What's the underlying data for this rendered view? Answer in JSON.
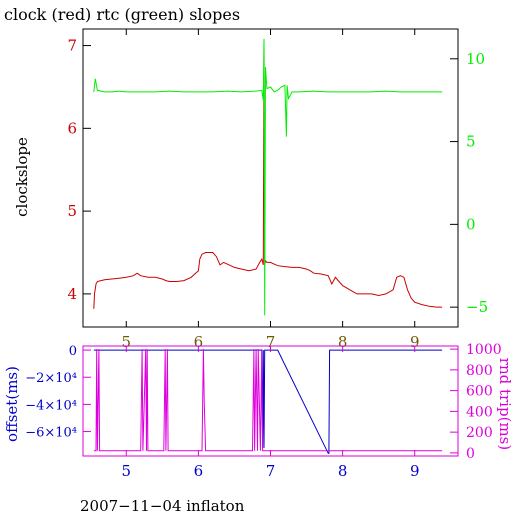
{
  "title": "clock (red) rtc (green) slopes",
  "footer": "2007−11−04 inflaton",
  "colors": {
    "red": "#cc0000",
    "green": "#00ee00",
    "blue": "#0000cc",
    "magenta": "#dd00dd",
    "olive": "#6b5a00",
    "axis": "#000000"
  },
  "chart_data": [
    {
      "type": "line",
      "title": "clock (red) rtc (green) slopes",
      "ylabel": "clockslope",
      "x_ticks": [
        "5",
        "6",
        "7",
        "8",
        "9"
      ],
      "xlim": [
        4.4,
        9.6
      ],
      "ylim": [
        3.6,
        7.2
      ],
      "y_ticks": [
        "4",
        "5",
        "6",
        "7"
      ],
      "y2lim": [
        -6.2,
        11.8
      ],
      "y2_ticks": [
        "−5",
        "0",
        "5",
        "10"
      ],
      "grid": false,
      "series": [
        {
          "axis": "left",
          "color": "red",
          "x": [
            4.55,
            4.56,
            4.58,
            4.6,
            4.65,
            4.7,
            4.8,
            4.9,
            5.0,
            5.1,
            5.15,
            5.2,
            5.3,
            5.4,
            5.5,
            5.55,
            5.6,
            5.7,
            5.8,
            5.9,
            6.0,
            6.02,
            6.05,
            6.1,
            6.2,
            6.25,
            6.3,
            6.35,
            6.45,
            6.5,
            6.6,
            6.7,
            6.8,
            6.85,
            6.88,
            6.9,
            6.91,
            6.92,
            6.93,
            6.95,
            7.0,
            7.1,
            7.2,
            7.3,
            7.4,
            7.5,
            7.55,
            7.6,
            7.7,
            7.8,
            7.85,
            7.9,
            7.95,
            8.0,
            8.1,
            8.2,
            8.3,
            8.4,
            8.5,
            8.6,
            8.7,
            8.75,
            8.8,
            8.85,
            8.9,
            8.95,
            9.0,
            9.1,
            9.2,
            9.3,
            9.38
          ],
          "y": [
            3.82,
            4.0,
            4.12,
            4.15,
            4.16,
            4.17,
            4.18,
            4.19,
            4.2,
            4.22,
            4.25,
            4.22,
            4.2,
            4.2,
            4.18,
            4.16,
            4.15,
            4.15,
            4.16,
            4.2,
            4.28,
            4.42,
            4.48,
            4.5,
            4.5,
            4.45,
            4.35,
            4.38,
            4.34,
            4.32,
            4.3,
            4.28,
            4.3,
            4.38,
            4.42,
            4.35,
            7.05,
            4.35,
            4.4,
            4.38,
            4.38,
            4.34,
            4.33,
            4.32,
            4.32,
            4.3,
            4.28,
            4.25,
            4.24,
            4.22,
            4.12,
            4.2,
            4.15,
            4.1,
            4.05,
            4.0,
            4.0,
            4.0,
            3.98,
            4.0,
            4.05,
            4.2,
            4.22,
            4.2,
            4.05,
            3.95,
            3.9,
            3.87,
            3.85,
            3.84,
            3.84
          ]
        },
        {
          "axis": "right",
          "color": "green",
          "x": [
            4.55,
            4.57,
            4.6,
            4.7,
            4.8,
            4.9,
            5.0,
            5.2,
            5.4,
            5.6,
            5.8,
            6.0,
            6.2,
            6.4,
            6.6,
            6.8,
            6.88,
            6.9,
            6.91,
            6.92,
            6.93,
            6.95,
            7.0,
            7.05,
            7.1,
            7.15,
            7.2,
            7.22,
            7.23,
            7.25,
            7.3,
            7.4,
            7.6,
            7.8,
            8.0,
            8.2,
            8.4,
            8.6,
            8.8,
            9.0,
            9.2,
            9.38
          ],
          "y": [
            8.0,
            8.8,
            8.1,
            8.0,
            8.0,
            8.05,
            8.0,
            8.0,
            8.0,
            8.05,
            8.0,
            8.0,
            8.0,
            8.05,
            8.0,
            8.05,
            8.1,
            7.5,
            11.2,
            -5.5,
            9.5,
            8.2,
            8.3,
            8.0,
            8.1,
            8.3,
            8.4,
            5.3,
            8.4,
            7.6,
            8.0,
            8.0,
            8.05,
            8.0,
            8.0,
            8.0,
            8.0,
            8.05,
            8.0,
            8.0,
            8.0,
            8.0
          ]
        }
      ]
    },
    {
      "type": "line",
      "ylabel": "offset(ms)",
      "y2label": "rnd trip(ms)",
      "x_ticks": [
        "5",
        "6",
        "7",
        "8",
        "9"
      ],
      "xlim": [
        4.4,
        9.6
      ],
      "ylim": [
        -78000,
        3000
      ],
      "y_ticks": [
        "0",
        "−2×10⁴",
        "−4×10⁴",
        "−6×10⁴"
      ],
      "y2lim": [
        -30,
        1030
      ],
      "y2_ticks": [
        "0",
        "200",
        "400",
        "600",
        "800",
        "1000"
      ],
      "grid": false,
      "series": [
        {
          "axis": "left",
          "color": "blue",
          "x": [
            4.55,
            6.88,
            6.89,
            6.9,
            6.91,
            6.92,
            7.1,
            7.8,
            7.81,
            7.82,
            9.38
          ],
          "y": [
            0,
            0,
            -72000,
            0,
            -72000,
            0,
            0,
            -76000,
            -76000,
            0,
            0
          ]
        },
        {
          "axis": "right",
          "color": "magenta",
          "x": [
            4.55,
            4.58,
            4.59,
            4.6,
            4.62,
            4.63,
            5.2,
            5.22,
            5.23,
            5.25,
            5.27,
            5.28,
            5.29,
            5.3,
            5.52,
            5.54,
            5.55,
            5.57,
            5.58,
            6.05,
            6.07,
            6.08,
            6.1,
            6.11,
            6.75,
            6.77,
            6.78,
            6.8,
            6.82,
            6.83,
            6.86,
            6.88,
            6.89,
            6.9,
            9.38
          ],
          "y": [
            20,
            20,
            1000,
            20,
            1000,
            20,
            20,
            1000,
            20,
            500,
            1000,
            20,
            1000,
            20,
            20,
            1000,
            20,
            1000,
            20,
            20,
            1000,
            500,
            20,
            20,
            20,
            1000,
            20,
            1000,
            20,
            1000,
            20,
            1000,
            20,
            20,
            20
          ]
        }
      ]
    }
  ]
}
